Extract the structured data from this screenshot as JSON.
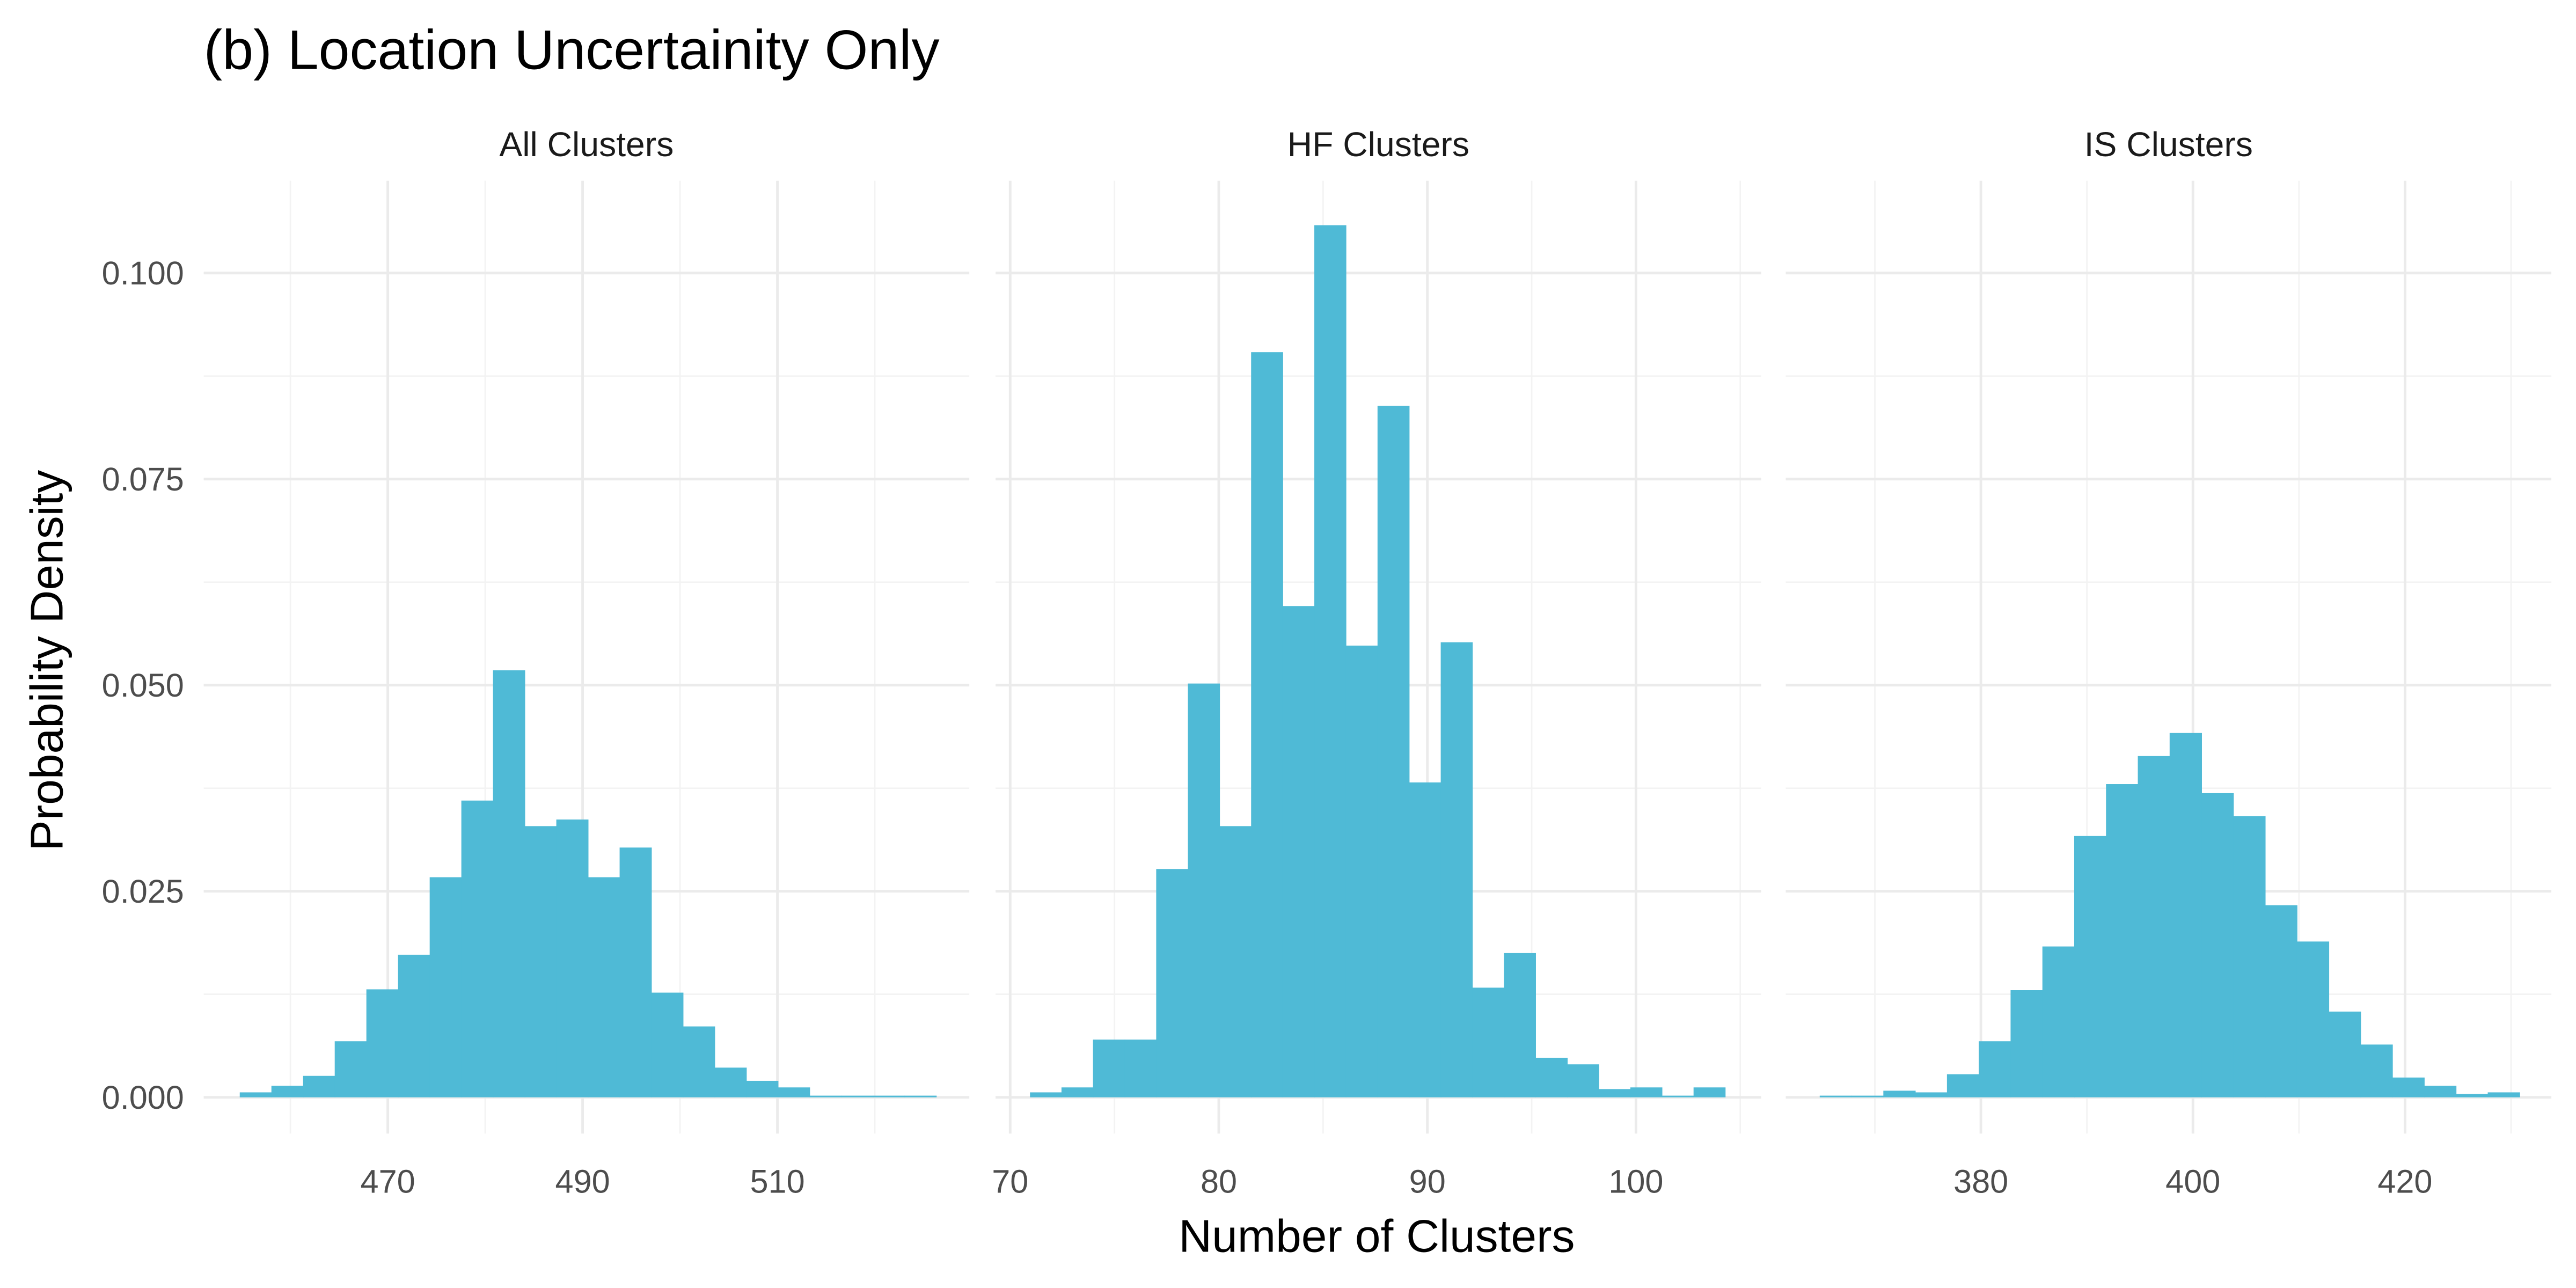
{
  "title": "(b) Location Uncertainity Only",
  "x_label": "Number of Clusters",
  "y_label": "Probability Density",
  "chart_data": [
    {
      "type": "histogram",
      "title": "All Clusters",
      "color": "#4fbad6",
      "grid": true,
      "bins": [
        454.8,
        458.05,
        461.3,
        464.55,
        467.8,
        471.05,
        474.3,
        477.55,
        480.8,
        484.05,
        487.3,
        490.55,
        493.8,
        497.05,
        500.3,
        503.55,
        506.8,
        510.05,
        513.3,
        516.55,
        519.8,
        523.05,
        526.3
      ],
      "values": [
        0.0006,
        0.0014,
        0.0026,
        0.0068,
        0.0131,
        0.0173,
        0.0267,
        0.036,
        0.0518,
        0.0329,
        0.0337,
        0.0267,
        0.0303,
        0.0127,
        0.0086,
        0.0036,
        0.002,
        0.0012,
        0.0002,
        0.0002,
        0.0002,
        0.0002
      ],
      "xlim": [
        451.1,
        529.7
      ],
      "xticks": [
        470,
        490,
        510
      ],
      "ylim": [
        -0.0044,
        0.1112
      ],
      "yticks": [
        {
          "value": 0,
          "label": "0.000"
        },
        {
          "value": 0.025,
          "label": "0.025"
        },
        {
          "value": 0.05,
          "label": "0.050"
        },
        {
          "value": 0.075,
          "label": "0.075"
        },
        {
          "value": 0.1,
          "label": "0.100"
        }
      ]
    },
    {
      "type": "histogram",
      "title": "HF Clusters",
      "color": "#4fbad6",
      "grid": true,
      "bins": [
        70.95,
        72.46,
        73.97,
        75.49,
        77.0,
        78.52,
        80.03,
        81.55,
        83.06,
        84.58,
        86.09,
        87.61,
        89.12,
        90.64,
        92.15,
        93.67,
        95.18,
        96.7,
        98.21,
        99.73,
        101.24,
        102.76,
        104.27
      ],
      "values": [
        0.0006,
        0.0012,
        0.007,
        0.007,
        0.0277,
        0.0502,
        0.0329,
        0.0904,
        0.0596,
        0.1058,
        0.0548,
        0.0839,
        0.0382,
        0.0552,
        0.0133,
        0.0175,
        0.0048,
        0.004,
        0.001,
        0.0012,
        0.0002,
        0.0012
      ],
      "xlim": [
        69.3,
        106.0
      ],
      "xticks": [
        70,
        80,
        90,
        100
      ],
      "ylim": [
        -0.0044,
        0.1112
      ],
      "yticks": [
        {
          "value": 0,
          "label": "0.000"
        },
        {
          "value": 0.025,
          "label": "0.025"
        },
        {
          "value": 0.05,
          "label": "0.050"
        },
        {
          "value": 0.075,
          "label": "0.075"
        },
        {
          "value": 0.1,
          "label": "0.100"
        }
      ]
    },
    {
      "type": "histogram",
      "title": "IS Clusters",
      "color": "#4fbad6",
      "grid": true,
      "bins": [
        364.8,
        367.8,
        370.8,
        373.8,
        376.8,
        379.8,
        382.8,
        385.8,
        388.8,
        391.8,
        394.8,
        397.8,
        400.8,
        403.8,
        406.8,
        409.8,
        412.8,
        415.8,
        418.8,
        421.8,
        424.8,
        427.8,
        430.8
      ],
      "values": [
        0.0002,
        0.0002,
        0.0008,
        0.0006,
        0.0028,
        0.0068,
        0.013,
        0.0183,
        0.0317,
        0.038,
        0.0414,
        0.0442,
        0.0369,
        0.0341,
        0.0233,
        0.0189,
        0.0104,
        0.0064,
        0.0024,
        0.0014,
        0.0004,
        0.0006
      ],
      "xlim": [
        361.6,
        433.8
      ],
      "xticks": [
        380,
        400,
        420
      ],
      "ylim": [
        -0.0044,
        0.1112
      ],
      "yticks": [
        {
          "value": 0,
          "label": "0.000"
        },
        {
          "value": 0.025,
          "label": "0.025"
        },
        {
          "value": 0.05,
          "label": "0.050"
        },
        {
          "value": 0.075,
          "label": "0.075"
        },
        {
          "value": 0.1,
          "label": "0.100"
        }
      ]
    }
  ]
}
